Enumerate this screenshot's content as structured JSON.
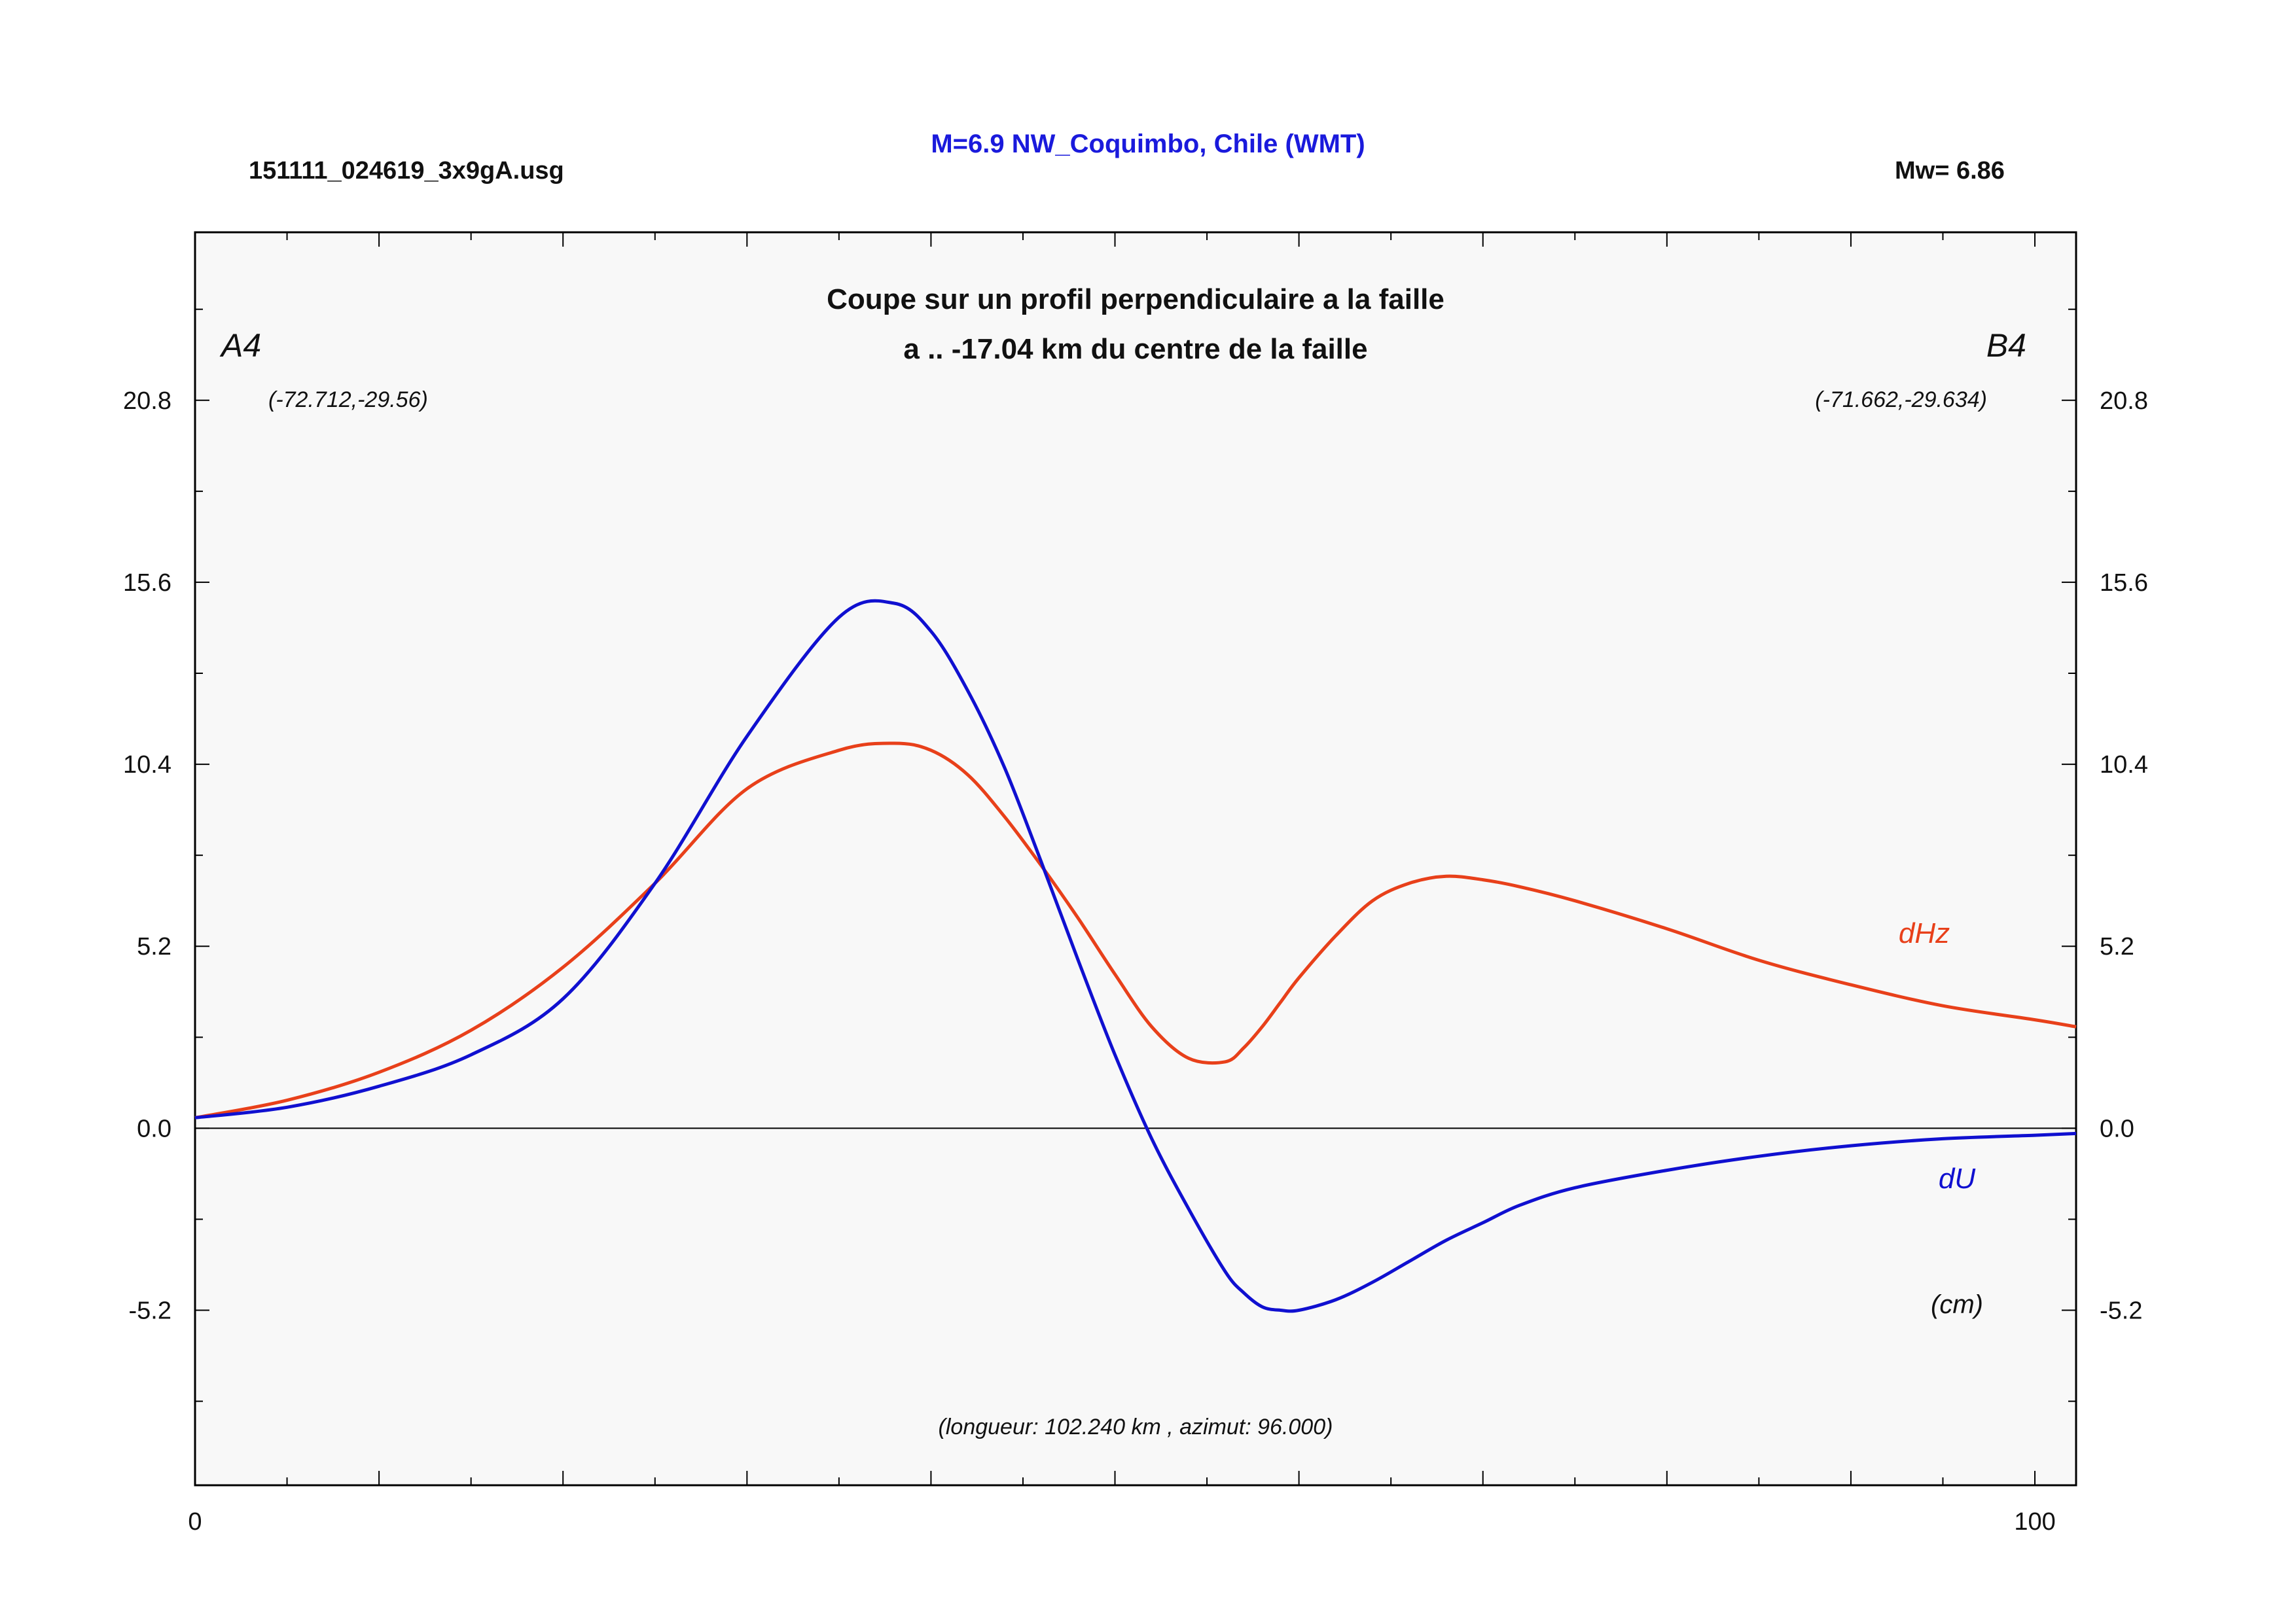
{
  "header": {
    "file_name": "151111_024619_3x9gA.usg",
    "title": "M=6.9 NW_Coquimbo, Chile (WMT)",
    "magnitude": "Mw= 6.86"
  },
  "colors": {
    "title": "#1a1adc",
    "dU": "#1010d0",
    "dHz": "#e8401a",
    "plot_bg": "#f8f8f8"
  },
  "chart_data": {
    "type": "line",
    "title_line1": "Coupe sur un profil perpendiculaire a la faille",
    "title_line2": "a .. -17.04 km du centre de la faille",
    "start_label": "A4",
    "end_label": "B4",
    "start_coords": "(-72.712,-29.56)",
    "end_coords": "(-71.662,-29.634)",
    "unit_label": "(cm)",
    "footnote": "(longueur: 102.240 km , azimut: 96.000)",
    "xlim": [
      0,
      102.24
    ],
    "ylim": [
      -10.2,
      25.6
    ],
    "x_ticks": [
      0,
      100
    ],
    "x_tick_labels": [
      "0",
      "100"
    ],
    "y_ticks": [
      -5.2,
      0,
      5.2,
      10.4,
      15.6,
      20.8
    ],
    "y_tick_labels": [
      "-5.2",
      "0.0",
      "5.2",
      "10.4",
      "15.6",
      "20.8"
    ],
    "grid": false,
    "series": [
      {
        "name": "dHz",
        "x": [
          0,
          5,
          10,
          15,
          20,
          25,
          30,
          35,
          38,
          40,
          42,
          44,
          46,
          48,
          50,
          52,
          54,
          56,
          57,
          58,
          59,
          60,
          62,
          64,
          66,
          68,
          70,
          72,
          75,
          80,
          85,
          90,
          95,
          100,
          102.24
        ],
        "values": [
          0.3,
          0.8,
          1.6,
          2.8,
          4.6,
          7.0,
          9.7,
          10.8,
          11.0,
          10.8,
          10.1,
          8.9,
          7.5,
          6.0,
          4.4,
          2.9,
          2.0,
          1.9,
          2.3,
          2.9,
          3.6,
          4.3,
          5.5,
          6.5,
          7.0,
          7.2,
          7.1,
          6.9,
          6.5,
          5.7,
          4.8,
          4.1,
          3.5,
          3.1,
          2.9
        ]
      },
      {
        "name": "dU",
        "x": [
          0,
          5,
          10,
          15,
          20,
          25,
          30,
          35,
          38,
          40,
          42,
          44,
          46,
          48,
          50,
          52,
          54,
          56,
          57,
          58,
          59,
          60,
          62,
          64,
          66,
          68,
          70,
          72,
          75,
          80,
          85,
          90,
          95,
          100,
          102.24
        ],
        "values": [
          0.3,
          0.6,
          1.2,
          2.1,
          3.7,
          7.0,
          11.2,
          14.6,
          15.0,
          14.2,
          12.5,
          10.3,
          7.6,
          4.8,
          2.1,
          -0.3,
          -2.3,
          -4.1,
          -4.7,
          -5.1,
          -5.2,
          -5.2,
          -4.9,
          -4.4,
          -3.8,
          -3.2,
          -2.7,
          -2.2,
          -1.7,
          -1.2,
          -0.8,
          -0.5,
          -0.3,
          -0.2,
          -0.15
        ]
      }
    ]
  }
}
